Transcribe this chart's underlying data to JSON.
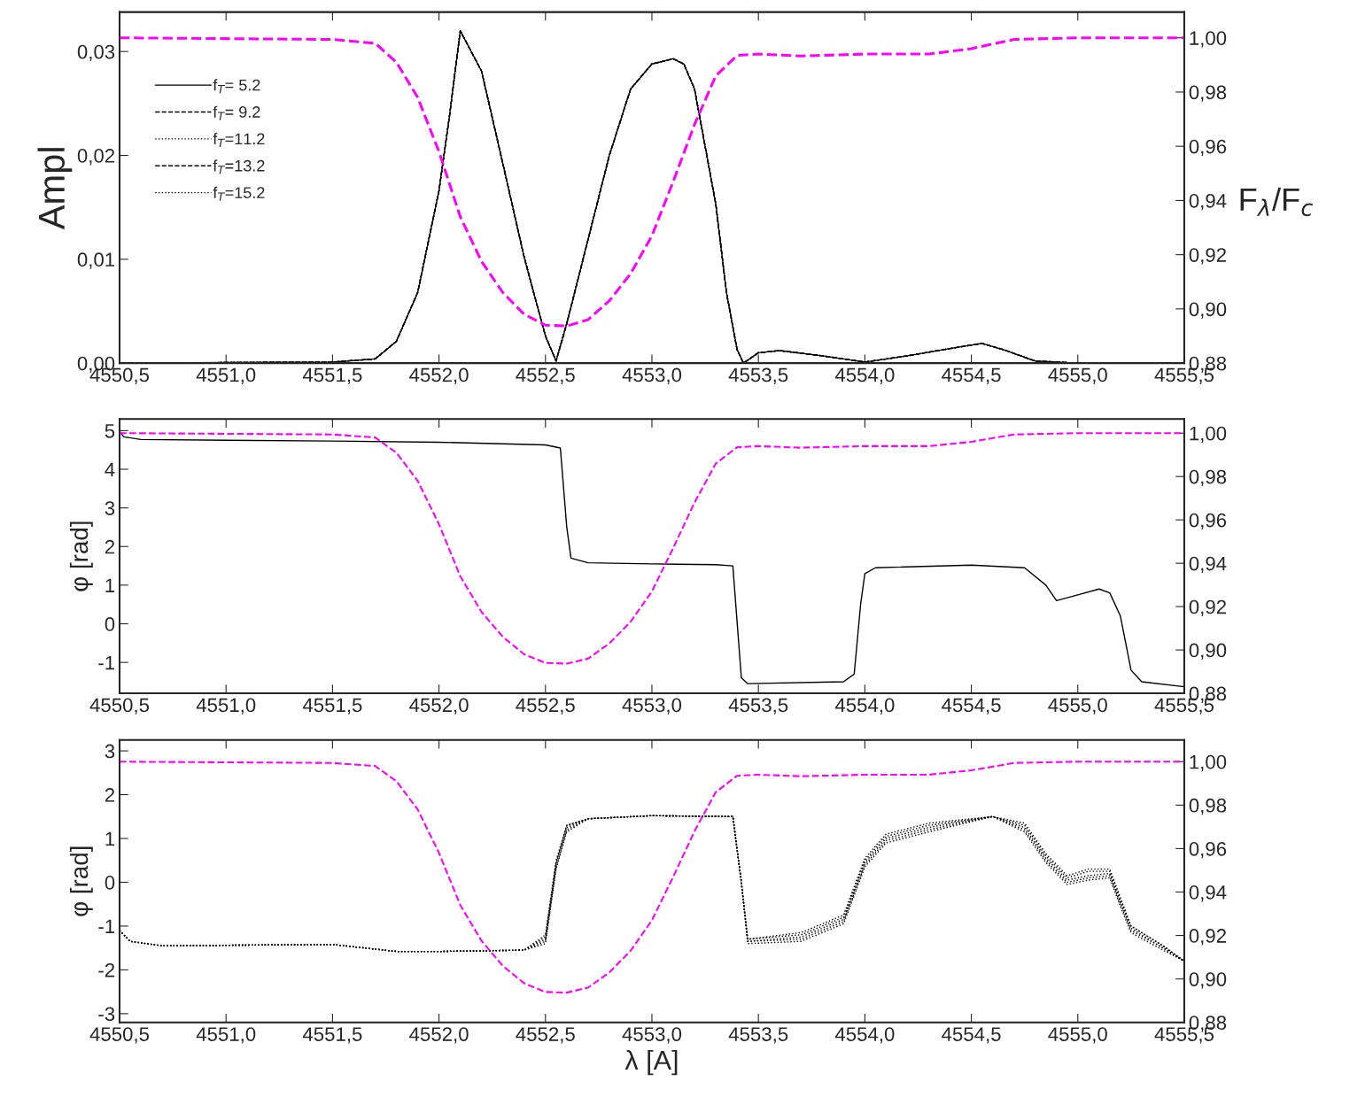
{
  "chart_data": [
    {
      "type": "line",
      "ylabel": "Ampl",
      "y2label": "F$_{λ}$/F$_{c}$",
      "legend": "top left",
      "x": [
        4550.5,
        4551.5,
        4551.7,
        4551.8,
        4551.9,
        4552.0,
        4552.05,
        4552.1,
        4552.2,
        4552.3,
        4552.4,
        4552.5,
        4552.55,
        4552.6,
        4552.7,
        4552.8,
        4552.9,
        4553.0,
        4553.1,
        4553.15,
        4553.2,
        4553.3,
        4553.35,
        4553.4,
        4553.43,
        4553.5,
        4553.6,
        4553.8,
        4554.0,
        4554.2,
        4554.4,
        4554.55,
        4554.65,
        4554.8,
        4555.0,
        4555.5
      ],
      "series": [
        {
          "name": "f$_{T}$= 5.2",
          "color": "#000000",
          "line_style": "solid",
          "values": [
            0.0,
            0.0001,
            0.0004,
            0.0021,
            0.0068,
            0.0166,
            0.0239,
            0.032,
            0.0281,
            0.0192,
            0.0102,
            0.0026,
            0.0002,
            0.0038,
            0.0119,
            0.02,
            0.0264,
            0.0288,
            0.0293,
            0.0288,
            0.0264,
            0.0153,
            0.0068,
            0.0013,
            0.0,
            0.001,
            0.0012,
            0.0007,
            0.0001,
            0.0007,
            0.0014,
            0.0019,
            0.0013,
            0.0002,
            0.0,
            0.0
          ]
        },
        {
          "name": "f$_{T}$= 9.2",
          "color": "#000000",
          "line_style": "dashed",
          "values": [
            0.0,
            0.0001,
            0.0004,
            0.0021,
            0.0068,
            0.0166,
            0.0239,
            0.032,
            0.0281,
            0.0192,
            0.0102,
            0.0026,
            0.0002,
            0.0038,
            0.0119,
            0.02,
            0.0264,
            0.0288,
            0.0293,
            0.0288,
            0.0264,
            0.0153,
            0.0068,
            0.0013,
            0.0,
            0.001,
            0.0012,
            0.0007,
            0.0001,
            0.0007,
            0.0014,
            0.0019,
            0.0013,
            0.0002,
            0.0,
            0.0
          ]
        },
        {
          "name": "f$_{T}$=11.2",
          "color": "#000000",
          "line_style": "dotted",
          "values": [
            0.0,
            0.0001,
            0.0004,
            0.0021,
            0.0068,
            0.0166,
            0.0239,
            0.032,
            0.0281,
            0.0192,
            0.0102,
            0.0026,
            0.0002,
            0.0038,
            0.0119,
            0.02,
            0.0264,
            0.0288,
            0.0293,
            0.0288,
            0.0264,
            0.0153,
            0.0068,
            0.0013,
            0.0,
            0.001,
            0.0012,
            0.0007,
            0.0001,
            0.0007,
            0.0014,
            0.0019,
            0.0013,
            0.0002,
            0.0,
            0.0
          ]
        },
        {
          "name": "f$_{T}$=13.2",
          "color": "#000000",
          "line_style": "dashed",
          "values": [
            0.0,
            0.0001,
            0.0004,
            0.0021,
            0.0068,
            0.0166,
            0.0239,
            0.032,
            0.0281,
            0.0192,
            0.0102,
            0.0026,
            0.0002,
            0.0038,
            0.0119,
            0.02,
            0.0264,
            0.0288,
            0.0293,
            0.0288,
            0.0264,
            0.0153,
            0.0068,
            0.0013,
            0.0,
            0.001,
            0.0012,
            0.0007,
            0.0001,
            0.0007,
            0.0014,
            0.0019,
            0.0013,
            0.0002,
            0.0,
            0.0
          ]
        },
        {
          "name": "f$_{T}$=15.2",
          "color": "#000000",
          "line_style": "dotted",
          "values": [
            0.0,
            0.0001,
            0.0004,
            0.0021,
            0.0068,
            0.0166,
            0.0239,
            0.032,
            0.0281,
            0.0192,
            0.0102,
            0.0026,
            0.0002,
            0.0038,
            0.0119,
            0.02,
            0.0264,
            0.0288,
            0.0293,
            0.0288,
            0.0264,
            0.0153,
            0.0068,
            0.0013,
            0.0,
            0.001,
            0.0012,
            0.0007,
            0.0001,
            0.0007,
            0.0014,
            0.0019,
            0.0013,
            0.0002,
            0.0,
            0.0
          ]
        },
        {
          "axis": "y2",
          "color": "#ff00ff",
          "line_style": "dashed",
          "x": [
            4550.5,
            4551.5,
            4551.7,
            4551.8,
            4551.9,
            4552.0,
            4552.1,
            4552.2,
            4552.3,
            4552.4,
            4552.5,
            4552.6,
            4552.7,
            4552.8,
            4552.9,
            4553.0,
            4553.1,
            4553.2,
            4553.3,
            4553.4,
            4553.5,
            4553.7,
            4554.0,
            4554.3,
            4554.5,
            4554.7,
            4555.0,
            4555.5
          ],
          "values": [
            1.0,
            0.9994,
            0.998,
            0.991,
            0.978,
            0.958,
            0.934,
            0.9175,
            0.906,
            0.898,
            0.894,
            0.8937,
            0.896,
            0.903,
            0.913,
            0.927,
            0.947,
            0.968,
            0.986,
            0.9935,
            0.994,
            0.9933,
            0.994,
            0.994,
            0.996,
            0.9994,
            1.0,
            1.0
          ]
        }
      ],
      "xlim": [
        4550.5,
        4555.5
      ],
      "xticks": [
        {
          "value": 4550.5,
          "label": "4550,5"
        },
        {
          "value": 4551.0,
          "label": "4551,0"
        },
        {
          "value": 4551.5,
          "label": "4551,5"
        },
        {
          "value": 4552.0,
          "label": "4552,0"
        },
        {
          "value": 4552.5,
          "label": "4552,5"
        },
        {
          "value": 4553.0,
          "label": "4553,0"
        },
        {
          "value": 4553.5,
          "label": "4553,5"
        },
        {
          "value": 4554.0,
          "label": "4554,0"
        },
        {
          "value": 4554.5,
          "label": "4554,5"
        },
        {
          "value": 4555.0,
          "label": "4555,0"
        },
        {
          "value": 4555.5,
          "label": "4555,5"
        }
      ],
      "ylim": [
        0,
        0.0338
      ],
      "yticks": [
        {
          "value": 0,
          "label": "0,00"
        },
        {
          "value": 0.01,
          "label": "0,01"
        },
        {
          "value": 0.02,
          "label": "0,02"
        },
        {
          "value": 0.03,
          "label": "0,03"
        }
      ],
      "y2lim": [
        0.88,
        1.0095
      ],
      "y2ticks": [
        {
          "value": 0.88,
          "label": "0,88"
        },
        {
          "value": 0.9,
          "label": "0,90"
        },
        {
          "value": 0.92,
          "label": "0,92"
        },
        {
          "value": 0.94,
          "label": "0,94"
        },
        {
          "value": 0.96,
          "label": "0,96"
        },
        {
          "value": 0.98,
          "label": "0,98"
        },
        {
          "value": 1.0,
          "label": "1,00"
        }
      ]
    },
    {
      "type": "line",
      "ylabel": "φ [rad]",
      "x": [
        4550.5,
        4550.52,
        4550.6,
        4551.5,
        4552.0,
        4552.5,
        4552.57,
        4552.6,
        4552.62,
        4552.7,
        4553.0,
        4553.3,
        4553.38,
        4553.42,
        4553.45,
        4553.9,
        4553.95,
        4553.98,
        4554.0,
        4554.05,
        4554.5,
        4554.75,
        4554.85,
        4554.9,
        4555.0,
        4555.1,
        4555.15,
        4555.2,
        4555.25,
        4555.3,
        4555.5
      ],
      "series": [
        {
          "color": "#000000",
          "line_style": "solid",
          "values": [
            4.98,
            4.84,
            4.77,
            4.73,
            4.7,
            4.63,
            4.55,
            2.5,
            1.7,
            1.58,
            1.55,
            1.53,
            1.5,
            -1.4,
            -1.55,
            -1.5,
            -1.3,
            0.5,
            1.3,
            1.45,
            1.52,
            1.45,
            1.0,
            0.6,
            0.75,
            0.9,
            0.8,
            0.2,
            -1.2,
            -1.5,
            -1.63
          ]
        },
        {
          "axis": "y2",
          "color": "#ff00ff",
          "line_style": "dashed",
          "x": [
            4550.5,
            4551.5,
            4551.7,
            4551.8,
            4551.9,
            4552.0,
            4552.1,
            4552.2,
            4552.3,
            4552.4,
            4552.5,
            4552.6,
            4552.7,
            4552.8,
            4552.9,
            4553.0,
            4553.1,
            4553.2,
            4553.3,
            4553.4,
            4553.5,
            4553.7,
            4554.0,
            4554.3,
            4554.5,
            4554.7,
            4555.0,
            4555.5
          ],
          "values": [
            1.0,
            0.9994,
            0.998,
            0.991,
            0.978,
            0.958,
            0.934,
            0.9175,
            0.906,
            0.898,
            0.894,
            0.8937,
            0.896,
            0.903,
            0.913,
            0.927,
            0.947,
            0.968,
            0.986,
            0.9935,
            0.994,
            0.9933,
            0.994,
            0.994,
            0.996,
            0.9994,
            1.0,
            1.0
          ]
        }
      ],
      "xlim": [
        4550.5,
        4555.5
      ],
      "xticks": [
        {
          "value": 4550.5,
          "label": "4550,5"
        },
        {
          "value": 4551.0,
          "label": "4551,0"
        },
        {
          "value": 4551.5,
          "label": "4551,5"
        },
        {
          "value": 4552.0,
          "label": "4552,0"
        },
        {
          "value": 4552.5,
          "label": "4552,5"
        },
        {
          "value": 4553.0,
          "label": "4553,0"
        },
        {
          "value": 4553.5,
          "label": "4553,5"
        },
        {
          "value": 4554.0,
          "label": "4554,0"
        },
        {
          "value": 4554.5,
          "label": "4554,5"
        },
        {
          "value": 4555.0,
          "label": "4555,0"
        },
        {
          "value": 4555.5,
          "label": "4555,5"
        }
      ],
      "ylim": [
        -1.8,
        5.3
      ],
      "yticks": [
        -1,
        0,
        1,
        2,
        3,
        4,
        5
      ],
      "y2lim": [
        0.88,
        1.0065
      ],
      "y2ticks": [
        {
          "value": 0.88,
          "label": "0,88"
        },
        {
          "value": 0.9,
          "label": "0,90"
        },
        {
          "value": 0.92,
          "label": "0,92"
        },
        {
          "value": 0.94,
          "label": "0,94"
        },
        {
          "value": 0.96,
          "label": "0,96"
        },
        {
          "value": 0.98,
          "label": "0,98"
        },
        {
          "value": 1.0,
          "label": "1,00"
        }
      ]
    },
    {
      "type": "line",
      "ylabel": "φ [rad]",
      "xlabel": "λ [A]",
      "x": [
        4550.5,
        4550.55,
        4550.7,
        4551.5,
        4551.8,
        4552.0,
        4552.4,
        4552.5,
        4552.55,
        4552.6,
        4552.7,
        4553.0,
        4553.38,
        4553.42,
        4553.45,
        4553.7,
        4553.9,
        4554.0,
        4554.1,
        4554.3,
        4554.6,
        4554.75,
        4554.85,
        4554.95,
        4555.05,
        4555.15,
        4555.2,
        4555.25,
        4555.4,
        4555.5
      ],
      "series": [
        {
          "color": "#000000",
          "line_style": "dotted",
          "values": [
            -1.1,
            -1.35,
            -1.45,
            -1.42,
            -1.58,
            -1.58,
            -1.55,
            -1.2,
            0.5,
            1.3,
            1.45,
            1.52,
            1.5,
            0.0,
            -1.3,
            -1.15,
            -0.75,
            0.55,
            1.1,
            1.35,
            1.5,
            1.35,
            0.65,
            0.15,
            0.3,
            0.3,
            -0.35,
            -1.0,
            -1.45,
            -1.8
          ]
        },
        {
          "color": "#000000",
          "line_style": "dotted",
          "values": [
            -1.1,
            -1.35,
            -1.45,
            -1.42,
            -1.58,
            -1.58,
            -1.55,
            -1.25,
            0.45,
            1.3,
            1.45,
            1.52,
            1.5,
            0.0,
            -1.3,
            -1.2,
            -0.8,
            0.5,
            1.05,
            1.3,
            1.5,
            1.3,
            0.6,
            0.1,
            0.25,
            0.25,
            -0.4,
            -1.0,
            -1.45,
            -1.8
          ]
        },
        {
          "color": "#000000",
          "line_style": "dotted",
          "values": [
            -1.1,
            -1.35,
            -1.45,
            -1.42,
            -1.58,
            -1.58,
            -1.55,
            -1.3,
            0.4,
            1.25,
            1.45,
            1.52,
            1.5,
            0.0,
            -1.35,
            -1.25,
            -0.85,
            0.45,
            1.0,
            1.25,
            1.5,
            1.25,
            0.55,
            0.05,
            0.15,
            0.2,
            -0.45,
            -1.05,
            -1.5,
            -1.8
          ]
        },
        {
          "color": "#000000",
          "line_style": "dotted",
          "values": [
            -1.1,
            -1.35,
            -1.45,
            -1.42,
            -1.58,
            -1.58,
            -1.55,
            -1.35,
            0.35,
            1.2,
            1.45,
            1.52,
            1.5,
            0.0,
            -1.35,
            -1.3,
            -0.9,
            0.4,
            0.95,
            1.2,
            1.5,
            1.2,
            0.5,
            0.0,
            0.1,
            0.15,
            -0.5,
            -1.1,
            -1.5,
            -1.8
          ]
        },
        {
          "color": "#000000",
          "line_style": "dotted",
          "values": [
            -1.1,
            -1.35,
            -1.45,
            -1.42,
            -1.58,
            -1.58,
            -1.55,
            -1.4,
            0.3,
            1.15,
            1.45,
            1.52,
            1.5,
            0.0,
            -1.4,
            -1.35,
            -0.95,
            0.35,
            0.9,
            1.15,
            1.5,
            1.15,
            0.45,
            -0.05,
            0.05,
            0.1,
            -0.55,
            -1.15,
            -1.55,
            -1.8
          ]
        },
        {
          "axis": "y2",
          "color": "#ff00ff",
          "line_style": "dashed",
          "x": [
            4550.5,
            4551.5,
            4551.7,
            4551.8,
            4551.9,
            4552.0,
            4552.1,
            4552.2,
            4552.3,
            4552.4,
            4552.5,
            4552.6,
            4552.7,
            4552.8,
            4552.9,
            4553.0,
            4553.1,
            4553.2,
            4553.3,
            4553.4,
            4553.5,
            4553.7,
            4554.0,
            4554.3,
            4554.5,
            4554.7,
            4555.0,
            4555.5
          ],
          "values": [
            1.0,
            0.9994,
            0.998,
            0.991,
            0.978,
            0.958,
            0.934,
            0.9175,
            0.906,
            0.898,
            0.894,
            0.8937,
            0.896,
            0.903,
            0.913,
            0.927,
            0.947,
            0.968,
            0.986,
            0.9935,
            0.994,
            0.9933,
            0.994,
            0.994,
            0.996,
            0.9994,
            1.0,
            1.0
          ]
        }
      ],
      "xlim": [
        4550.5,
        4555.5
      ],
      "xticks": [
        {
          "value": 4550.5,
          "label": "4550,5"
        },
        {
          "value": 4551.0,
          "label": "4551,0"
        },
        {
          "value": 4551.5,
          "label": "4551,5"
        },
        {
          "value": 4552.0,
          "label": "4552,0"
        },
        {
          "value": 4552.5,
          "label": "4552,5"
        },
        {
          "value": 4553.0,
          "label": "4553,0"
        },
        {
          "value": 4553.5,
          "label": "4553,5"
        },
        {
          "value": 4554.0,
          "label": "4554,0"
        },
        {
          "value": 4554.5,
          "label": "4554,5"
        },
        {
          "value": 4555.0,
          "label": "4555,0"
        },
        {
          "value": 4555.5,
          "label": "4555,5"
        }
      ],
      "ylim": [
        -3.2,
        3.25
      ],
      "yticks": [
        -3,
        -2,
        -1,
        0,
        1,
        2,
        3
      ],
      "y2lim": [
        0.88,
        1.01
      ],
      "y2ticks": [
        {
          "value": 0.88,
          "label": "0,88"
        },
        {
          "value": 0.9,
          "label": "0,90"
        },
        {
          "value": 0.92,
          "label": "0,92"
        },
        {
          "value": 0.94,
          "label": "0,94"
        },
        {
          "value": 0.96,
          "label": "0,96"
        },
        {
          "value": 0.98,
          "label": "0,98"
        },
        {
          "value": 1.0,
          "label": "1,00"
        }
      ]
    }
  ]
}
